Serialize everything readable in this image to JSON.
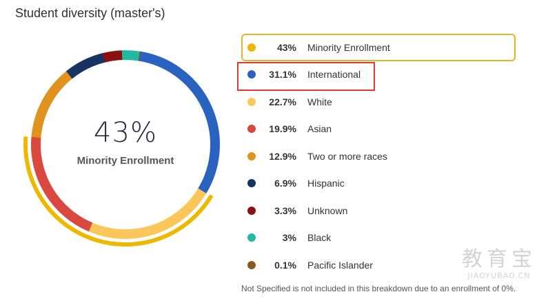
{
  "header": {
    "title": "Student diversity (master's)"
  },
  "center": {
    "value": "43%",
    "label": "Minority Enrollment"
  },
  "chart_data": {
    "type": "pie",
    "title": "Student diversity (master's)",
    "categories": [
      "International",
      "White",
      "Asian",
      "Two or more races",
      "Hispanic",
      "Unknown",
      "Black",
      "Pacific Islander"
    ],
    "values": [
      31.1,
      22.7,
      19.9,
      12.9,
      6.9,
      3.3,
      3,
      0.1
    ],
    "colors": [
      "#2a62bf",
      "#fbc65a",
      "#d9493f",
      "#e0931f",
      "#173362",
      "#8b1111",
      "#22b8a3",
      "#8a5a1a"
    ],
    "highlight": {
      "label": "Minority Enrollment",
      "value": 43,
      "color": "#ecb800",
      "segments": [
        "White",
        "Asian"
      ]
    }
  },
  "legend": {
    "items": [
      {
        "pct": "43%",
        "label": "Minority Enrollment",
        "color": "#ecb800"
      },
      {
        "pct": "31.1%",
        "label": "International",
        "color": "#2a62bf"
      },
      {
        "pct": "22.7%",
        "label": "White",
        "color": "#fbc65a"
      },
      {
        "pct": "19.9%",
        "label": "Asian",
        "color": "#d9493f"
      },
      {
        "pct": "12.9%",
        "label": "Two or more races",
        "color": "#e0931f"
      },
      {
        "pct": "6.9%",
        "label": "Hispanic",
        "color": "#173362"
      },
      {
        "pct": "3.3%",
        "label": "Unknown",
        "color": "#8b1111"
      },
      {
        "pct": "3%",
        "label": "Black",
        "color": "#22b8a3"
      },
      {
        "pct": "0.1%",
        "label": "Pacific Islander",
        "color": "#8a5a1a"
      }
    ]
  },
  "footnote": "Not Specified is not included in this breakdown due to an enrollment of 0%.",
  "watermark": {
    "big": "教育宝",
    "small": "JIAOYUBAO.CN"
  }
}
